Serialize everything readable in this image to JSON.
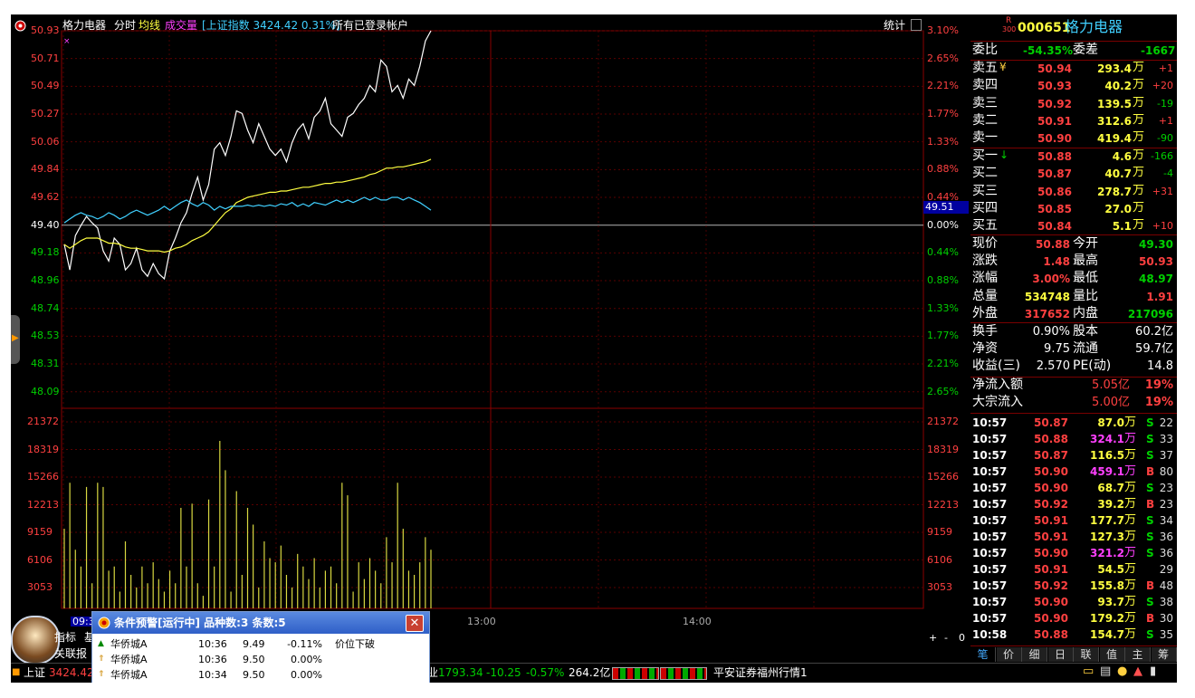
{
  "header": {
    "stock_name": "格力电器",
    "mode_fenshi": "分时",
    "mode_junxian": "均线",
    "mode_volume": "成交量",
    "index_info": "[上证指数 3424.42 0.31%]",
    "account": "所有已登录帐户",
    "stats_label": "统计"
  },
  "axes": {
    "price_left": [
      "50.93",
      "50.71",
      "50.49",
      "50.27",
      "50.06",
      "49.84",
      "49.62",
      "49.40",
      "49.18",
      "48.96",
      "48.74",
      "48.53",
      "48.31",
      "48.09"
    ],
    "pct_right": [
      "3.10%",
      "2.65%",
      "2.21%",
      "1.77%",
      "1.33%",
      "0.88%",
      "0.44%",
      "0.00%",
      "0.44%",
      "0.88%",
      "1.33%",
      "1.77%",
      "2.21%",
      "2.65%"
    ],
    "volume_ticks": [
      "21372",
      "18319",
      "15266",
      "12213",
      "9159",
      "6106",
      "3053"
    ],
    "time_labels": [
      "09:30",
      "13:00",
      "14:00"
    ],
    "cursor_price": "49.51",
    "zoom_buttons": [
      "+",
      "-",
      "0"
    ]
  },
  "chart_data": {
    "type": "line",
    "title": "格力电器 分时",
    "ylim": [
      48.09,
      50.93
    ],
    "prev_close": 49.4,
    "series": [
      {
        "name": "价格",
        "color": "#ffffff",
        "values": [
          49.25,
          49.05,
          49.32,
          49.4,
          49.47,
          49.42,
          49.38,
          49.2,
          49.12,
          49.3,
          49.25,
          49.05,
          49.1,
          49.22,
          49.05,
          49.0,
          49.1,
          49.02,
          48.98,
          49.2,
          49.3,
          49.42,
          49.5,
          49.65,
          49.78,
          49.6,
          49.72,
          50.0,
          50.05,
          49.95,
          50.1,
          50.3,
          50.28,
          50.15,
          50.05,
          50.2,
          50.1,
          50.0,
          49.95,
          50.0,
          49.9,
          50.05,
          50.15,
          50.2,
          50.08,
          50.25,
          50.3,
          50.4,
          50.2,
          50.15,
          50.1,
          50.25,
          50.28,
          50.35,
          50.4,
          50.5,
          50.45,
          50.7,
          50.65,
          50.45,
          50.5,
          50.4,
          50.55,
          50.5,
          50.65,
          50.85,
          50.93
        ]
      },
      {
        "name": "均价",
        "color": "#ffff40",
        "values": [
          49.25,
          49.22,
          49.25,
          49.28,
          49.3,
          49.3,
          49.3,
          49.28,
          49.26,
          49.26,
          49.25,
          49.23,
          49.22,
          49.22,
          49.21,
          49.2,
          49.2,
          49.2,
          49.19,
          49.2,
          49.22,
          49.23,
          49.25,
          49.28,
          49.3,
          49.32,
          49.35,
          49.4,
          49.45,
          49.5,
          49.53,
          49.58,
          49.6,
          49.62,
          49.63,
          49.64,
          49.65,
          49.66,
          49.66,
          49.67,
          49.67,
          49.68,
          49.69,
          49.7,
          49.7,
          49.71,
          49.72,
          49.73,
          49.73,
          49.74,
          49.74,
          49.75,
          49.76,
          49.77,
          49.78,
          49.8,
          49.81,
          49.83,
          49.85,
          49.85,
          49.86,
          49.86,
          49.87,
          49.88,
          49.89,
          49.9,
          49.92
        ]
      },
      {
        "name": "上证指数",
        "color": "#40d0ff",
        "values": [
          49.42,
          49.45,
          49.48,
          49.5,
          49.48,
          49.47,
          49.45,
          49.47,
          49.5,
          49.48,
          49.45,
          49.47,
          49.5,
          49.52,
          49.5,
          49.48,
          49.5,
          49.52,
          49.55,
          49.52,
          49.55,
          49.58,
          49.6,
          49.57,
          49.55,
          49.58,
          49.56,
          49.52,
          49.55,
          49.53,
          49.55,
          49.55,
          49.55,
          49.56,
          49.55,
          49.56,
          49.55,
          49.56,
          49.55,
          49.57,
          49.56,
          49.58,
          49.55,
          49.57,
          49.55,
          49.58,
          49.57,
          49.56,
          49.58,
          49.6,
          49.58,
          49.6,
          49.58,
          49.6,
          49.62,
          49.6,
          49.62,
          49.6,
          49.6,
          49.62,
          49.62,
          49.6,
          49.62,
          49.6,
          49.58,
          49.55,
          49.52
        ]
      },
      {
        "name": "成交量",
        "color": "#d8d840",
        "values": [
          9500,
          15000,
          7000,
          5000,
          14500,
          3000,
          15000,
          14500,
          4500,
          5000,
          2000,
          8000,
          4000,
          2500,
          5000,
          3000,
          5500,
          3500,
          2000,
          4500,
          3000,
          12000,
          5000,
          12500,
          3000,
          1500,
          13000,
          5000,
          20000,
          16500,
          2000,
          14000,
          4000,
          12000,
          10000,
          2500,
          8000,
          6000,
          5500,
          7500,
          4000,
          2500,
          6500,
          5000,
          3500,
          6000,
          2500,
          4500,
          5000,
          3000,
          15000,
          13500,
          2000,
          5500,
          3500,
          6000,
          4500,
          3000,
          8500,
          5500,
          15000,
          9500,
          4500,
          4000,
          5500,
          8500,
          7000
        ]
      }
    ]
  },
  "quote": {
    "r_label": "R",
    "r_num": "300",
    "code": "000651",
    "name": "格力电器",
    "weibi_label": "委比",
    "weibi": "-54.35%",
    "weicha_label": "委差",
    "weicha": "-1667",
    "asks": [
      {
        "label": "卖五",
        "mark": "¥",
        "price": "50.94",
        "vol": "293.4",
        "unit": "万",
        "chg": "+1"
      },
      {
        "label": "卖四",
        "mark": "",
        "price": "50.93",
        "vol": "40.2",
        "unit": "万",
        "chg": "+20"
      },
      {
        "label": "卖三",
        "mark": "",
        "price": "50.92",
        "vol": "139.5",
        "unit": "万",
        "chg": "-19"
      },
      {
        "label": "卖二",
        "mark": "",
        "price": "50.91",
        "vol": "312.6",
        "unit": "万",
        "chg": "+1"
      },
      {
        "label": "卖一",
        "mark": "",
        "price": "50.90",
        "vol": "419.4",
        "unit": "万",
        "chg": "-90"
      }
    ],
    "bids": [
      {
        "label": "买一",
        "mark": "↓",
        "price": "50.88",
        "vol": "4.6",
        "unit": "万",
        "chg": "-166"
      },
      {
        "label": "买二",
        "mark": "",
        "price": "50.87",
        "vol": "40.7",
        "unit": "万",
        "chg": "-4"
      },
      {
        "label": "买三",
        "mark": "",
        "price": "50.86",
        "vol": "278.7",
        "unit": "万",
        "chg": "+31"
      },
      {
        "label": "买四",
        "mark": "",
        "price": "50.85",
        "vol": "27.0",
        "unit": "万",
        "chg": ""
      },
      {
        "label": "买五",
        "mark": "",
        "price": "50.84",
        "vol": "5.1",
        "unit": "万",
        "chg": "+10"
      }
    ],
    "stats": [
      {
        "l1": "现价",
        "v1": "50.88",
        "c1": "red",
        "l2": "今开",
        "v2": "49.30",
        "c2": "grn"
      },
      {
        "l1": "涨跌",
        "v1": "1.48",
        "c1": "red",
        "l2": "最高",
        "v2": "50.93",
        "c2": "red"
      },
      {
        "l1": "涨幅",
        "v1": "3.00%",
        "c1": "red",
        "l2": "最低",
        "v2": "48.97",
        "c2": "grn"
      },
      {
        "l1": "总量",
        "v1": "534748",
        "c1": "yel",
        "l2": "量比",
        "v2": "1.91",
        "c2": "red"
      },
      {
        "l1": "外盘",
        "v1": "317652",
        "c1": "red",
        "l2": "内盘",
        "v2": "217096",
        "c2": "grn"
      }
    ],
    "fund": [
      {
        "l1": "换手",
        "v1": "0.90%",
        "l2": "股本",
        "v2": "60.2亿"
      },
      {
        "l1": "净资",
        "v1": "9.75",
        "l2": "流通",
        "v2": "59.7亿"
      },
      {
        "l1": "收益(三)",
        "v1": "2.570",
        "l2": "PE(动)",
        "v2": "14.8"
      }
    ],
    "flow": [
      {
        "label": "净流入额",
        "amount": "5.05亿",
        "pct": "19%"
      },
      {
        "label": "大宗流入",
        "amount": "5.00亿",
        "pct": "19%"
      }
    ]
  },
  "ticks": [
    {
      "time": "10:57",
      "price": "50.87",
      "vol": "87.0",
      "unit": "万",
      "side": "S",
      "n": "22",
      "pc": "red",
      "vc": "yel"
    },
    {
      "time": "10:57",
      "price": "50.88",
      "vol": "324.1",
      "unit": "万",
      "side": "S",
      "n": "33",
      "pc": "red",
      "vc": "mag"
    },
    {
      "time": "10:57",
      "price": "50.87",
      "vol": "116.5",
      "unit": "万",
      "side": "S",
      "n": "37",
      "pc": "red",
      "vc": "yel"
    },
    {
      "time": "10:57",
      "price": "50.90",
      "vol": "459.1",
      "unit": "万",
      "side": "B",
      "n": "80",
      "pc": "red",
      "vc": "mag"
    },
    {
      "time": "10:57",
      "price": "50.90",
      "vol": "68.7",
      "unit": "万",
      "side": "S",
      "n": "23",
      "pc": "red",
      "vc": "yel"
    },
    {
      "time": "10:57",
      "price": "50.92",
      "vol": "39.2",
      "unit": "万",
      "side": "B",
      "n": "23",
      "pc": "red",
      "vc": "yel"
    },
    {
      "time": "10:57",
      "price": "50.91",
      "vol": "177.7",
      "unit": "万",
      "side": "S",
      "n": "34",
      "pc": "red",
      "vc": "yel"
    },
    {
      "time": "10:57",
      "price": "50.91",
      "vol": "127.3",
      "unit": "万",
      "side": "S",
      "n": "36",
      "pc": "red",
      "vc": "yel"
    },
    {
      "time": "10:57",
      "price": "50.90",
      "vol": "321.2",
      "unit": "万",
      "side": "S",
      "n": "36",
      "pc": "red",
      "vc": "mag"
    },
    {
      "time": "10:57",
      "price": "50.91",
      "vol": "54.5",
      "unit": "万",
      "side": "",
      "n": "29",
      "pc": "red",
      "vc": "yel"
    },
    {
      "time": "10:57",
      "price": "50.92",
      "vol": "155.8",
      "unit": "万",
      "side": "B",
      "n": "48",
      "pc": "red",
      "vc": "yel"
    },
    {
      "time": "10:57",
      "price": "50.90",
      "vol": "93.7",
      "unit": "万",
      "side": "S",
      "n": "38",
      "pc": "red",
      "vc": "yel"
    },
    {
      "time": "10:57",
      "price": "50.90",
      "vol": "179.2",
      "unit": "万",
      "side": "B",
      "n": "30",
      "pc": "red",
      "vc": "yel"
    },
    {
      "time": "10:58",
      "price": "50.88",
      "vol": "154.7",
      "unit": "万",
      "side": "S",
      "n": "35",
      "pc": "red",
      "vc": "yel"
    }
  ],
  "right_tabs": [
    "笔",
    "价",
    "细",
    "日",
    "联",
    "值",
    "主",
    "筹"
  ],
  "alarm": {
    "title": "条件预警[运行中] 品种数:3 条数:5",
    "rows": [
      {
        "name": "华侨城A",
        "time": "10:36",
        "price": "9.49",
        "pct": "-0.11%",
        "cond": "价位下破"
      },
      {
        "name": "华侨城A",
        "time": "10:36",
        "price": "9.50",
        "pct": "0.00%",
        "cond": ""
      },
      {
        "name": "华侨城A",
        "time": "10:34",
        "price": "9.50",
        "pct": "0.00%",
        "cond": ""
      }
    ]
  },
  "bottom": {
    "indicator_tab": "指标",
    "indicator_tab2": "基",
    "related_tab": "关联报",
    "sh_label": "上证",
    "sh_value": "3424.42",
    "ind_label": "业",
    "ind_value": "1793.34",
    "ind_chg": "-10.25",
    "ind_pct": "-0.57%",
    "ind_amount": "264.2亿",
    "broker": "平安证券福州行情1"
  }
}
